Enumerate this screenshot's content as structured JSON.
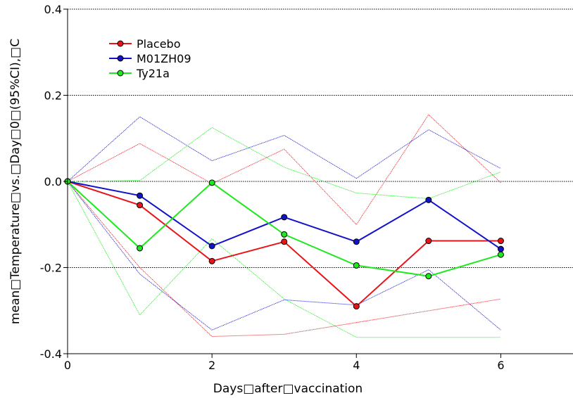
{
  "chart_data": {
    "type": "line",
    "xlabel": "Days□after□vaccination",
    "ylabel": "mean□Temperature□vs.□Day□0□(95%CI),□C",
    "xlim": [
      0,
      7
    ],
    "ylim": [
      -0.4,
      0.4
    ],
    "x_ticks": [
      0,
      2,
      4,
      6
    ],
    "y_ticks": [
      -0.4,
      -0.2,
      0.0,
      0.2,
      0.4
    ],
    "x_tick_labels": [
      "0",
      "2",
      "4",
      "6"
    ],
    "y_tick_labels": [
      "-0.4",
      "-0.2",
      "0.0",
      "0.2",
      "0.4"
    ],
    "gridlines": "horizontal dotted at y ticks",
    "legend_position": "top-left",
    "x": [
      0,
      1,
      2,
      3,
      4,
      5,
      6
    ],
    "series": [
      {
        "name": "Placebo",
        "color": "#e8141a",
        "mean": [
          0.0,
          -0.055,
          -0.185,
          -0.14,
          -0.29,
          -0.138,
          -0.138
        ],
        "upper": [
          0.0,
          0.088,
          -0.005,
          0.075,
          -0.1,
          0.155,
          -0.003
        ],
        "lower": [
          0.0,
          -0.2,
          -0.36,
          -0.355,
          null,
          null,
          -0.273
        ]
      },
      {
        "name": "M01ZH09",
        "color": "#1212c8",
        "mean": [
          0.0,
          -0.033,
          -0.15,
          -0.083,
          -0.14,
          -0.043,
          -0.157
        ],
        "upper": [
          0.0,
          0.15,
          0.048,
          0.107,
          0.007,
          0.12,
          0.03
        ],
        "lower": [
          0.0,
          -0.215,
          -0.345,
          -0.275,
          -0.287,
          -0.205,
          -0.345
        ]
      },
      {
        "name": "Ty21a",
        "color": "#1ee81e",
        "mean": [
          0.0,
          -0.155,
          -0.003,
          -0.123,
          -0.195,
          -0.22,
          -0.17
        ],
        "upper": [
          0.0,
          0.002,
          0.125,
          0.033,
          -0.027,
          -0.04,
          0.022
        ],
        "lower": [
          0.0,
          -0.31,
          -0.133,
          -0.273,
          -0.362,
          -0.362,
          -0.362
        ]
      }
    ]
  }
}
